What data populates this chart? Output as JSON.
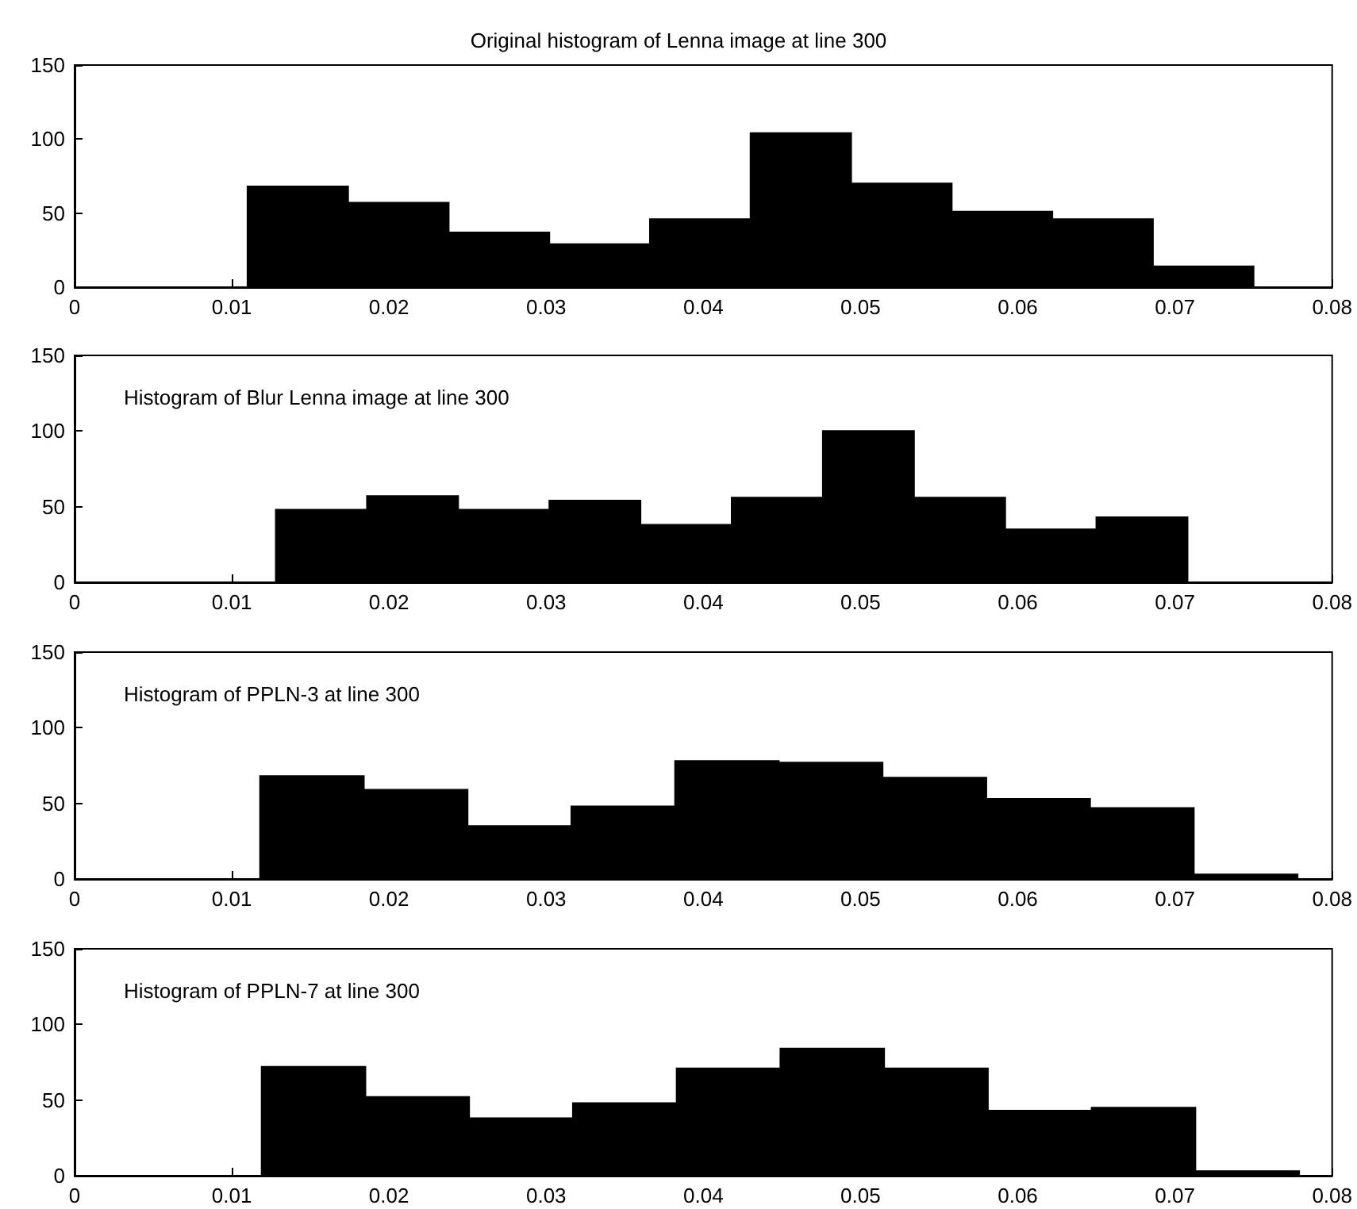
{
  "chart_data": [
    {
      "type": "histogram",
      "title": "Original histogram of Lenna image at line 300",
      "bins": [
        0.011,
        0.0174,
        0.0238,
        0.0302,
        0.0366,
        0.043,
        0.0494,
        0.0558,
        0.0622,
        0.0686,
        0.075
      ],
      "values": [
        68,
        57,
        37,
        29,
        46,
        104,
        70,
        51,
        46,
        14
      ],
      "color": "#000000",
      "xlim": [
        0,
        0.08
      ],
      "xticks": [
        0,
        0.01,
        0.02,
        0.03,
        0.04,
        0.05,
        0.06,
        0.07,
        0.08
      ],
      "ylim": [
        0,
        150
      ],
      "yticks": [
        0,
        50,
        100,
        150
      ],
      "grid": false
    },
    {
      "type": "histogram",
      "annotations": [
        "Histogram of Blur Lenna image at line 300"
      ],
      "bins": [
        0.0128,
        0.0186,
        0.0244,
        0.0302,
        0.036,
        0.0418,
        0.0476,
        0.0534,
        0.0592,
        0.065,
        0.0708
      ],
      "values": [
        48,
        57,
        48,
        54,
        38,
        56,
        100,
        56,
        35,
        43
      ],
      "color": "#000000",
      "xlim": [
        0,
        0.08
      ],
      "xticks": [
        0,
        0.01,
        0.02,
        0.03,
        0.04,
        0.05,
        0.06,
        0.07,
        0.08
      ],
      "ylim": [
        0,
        150
      ],
      "yticks": [
        0,
        50,
        100,
        150
      ],
      "grid": false
    },
    {
      "type": "histogram",
      "annotations": [
        "Histogram of PPLN-3 at line 300"
      ],
      "bins": [
        0.0118,
        0.0184,
        0.025,
        0.0316,
        0.0382,
        0.0448,
        0.0514,
        0.058,
        0.0646,
        0.0712,
        0.0778
      ],
      "values": [
        68,
        59,
        35,
        48,
        78,
        77,
        67,
        53,
        47,
        3
      ],
      "color": "#000000",
      "xlim": [
        0,
        0.08
      ],
      "xticks": [
        0,
        0.01,
        0.02,
        0.03,
        0.04,
        0.05,
        0.06,
        0.07,
        0.08
      ],
      "ylim": [
        0,
        150
      ],
      "yticks": [
        0,
        50,
        100,
        150
      ],
      "grid": false
    },
    {
      "type": "histogram",
      "annotations": [
        "Histogram of PPLN-7 at line 300"
      ],
      "bins": [
        0.0119,
        0.0185,
        0.0251,
        0.0317,
        0.0383,
        0.0449,
        0.0515,
        0.0581,
        0.0647,
        0.0713,
        0.0779
      ],
      "values": [
        72,
        52,
        38,
        48,
        71,
        84,
        71,
        43,
        45,
        3
      ],
      "color": "#000000",
      "xlim": [
        0,
        0.08
      ],
      "xticks": [
        0,
        0.01,
        0.02,
        0.03,
        0.04,
        0.05,
        0.06,
        0.07,
        0.08
      ],
      "ylim": [
        0,
        150
      ],
      "yticks": [
        0,
        50,
        100,
        150
      ],
      "grid": false
    }
  ]
}
